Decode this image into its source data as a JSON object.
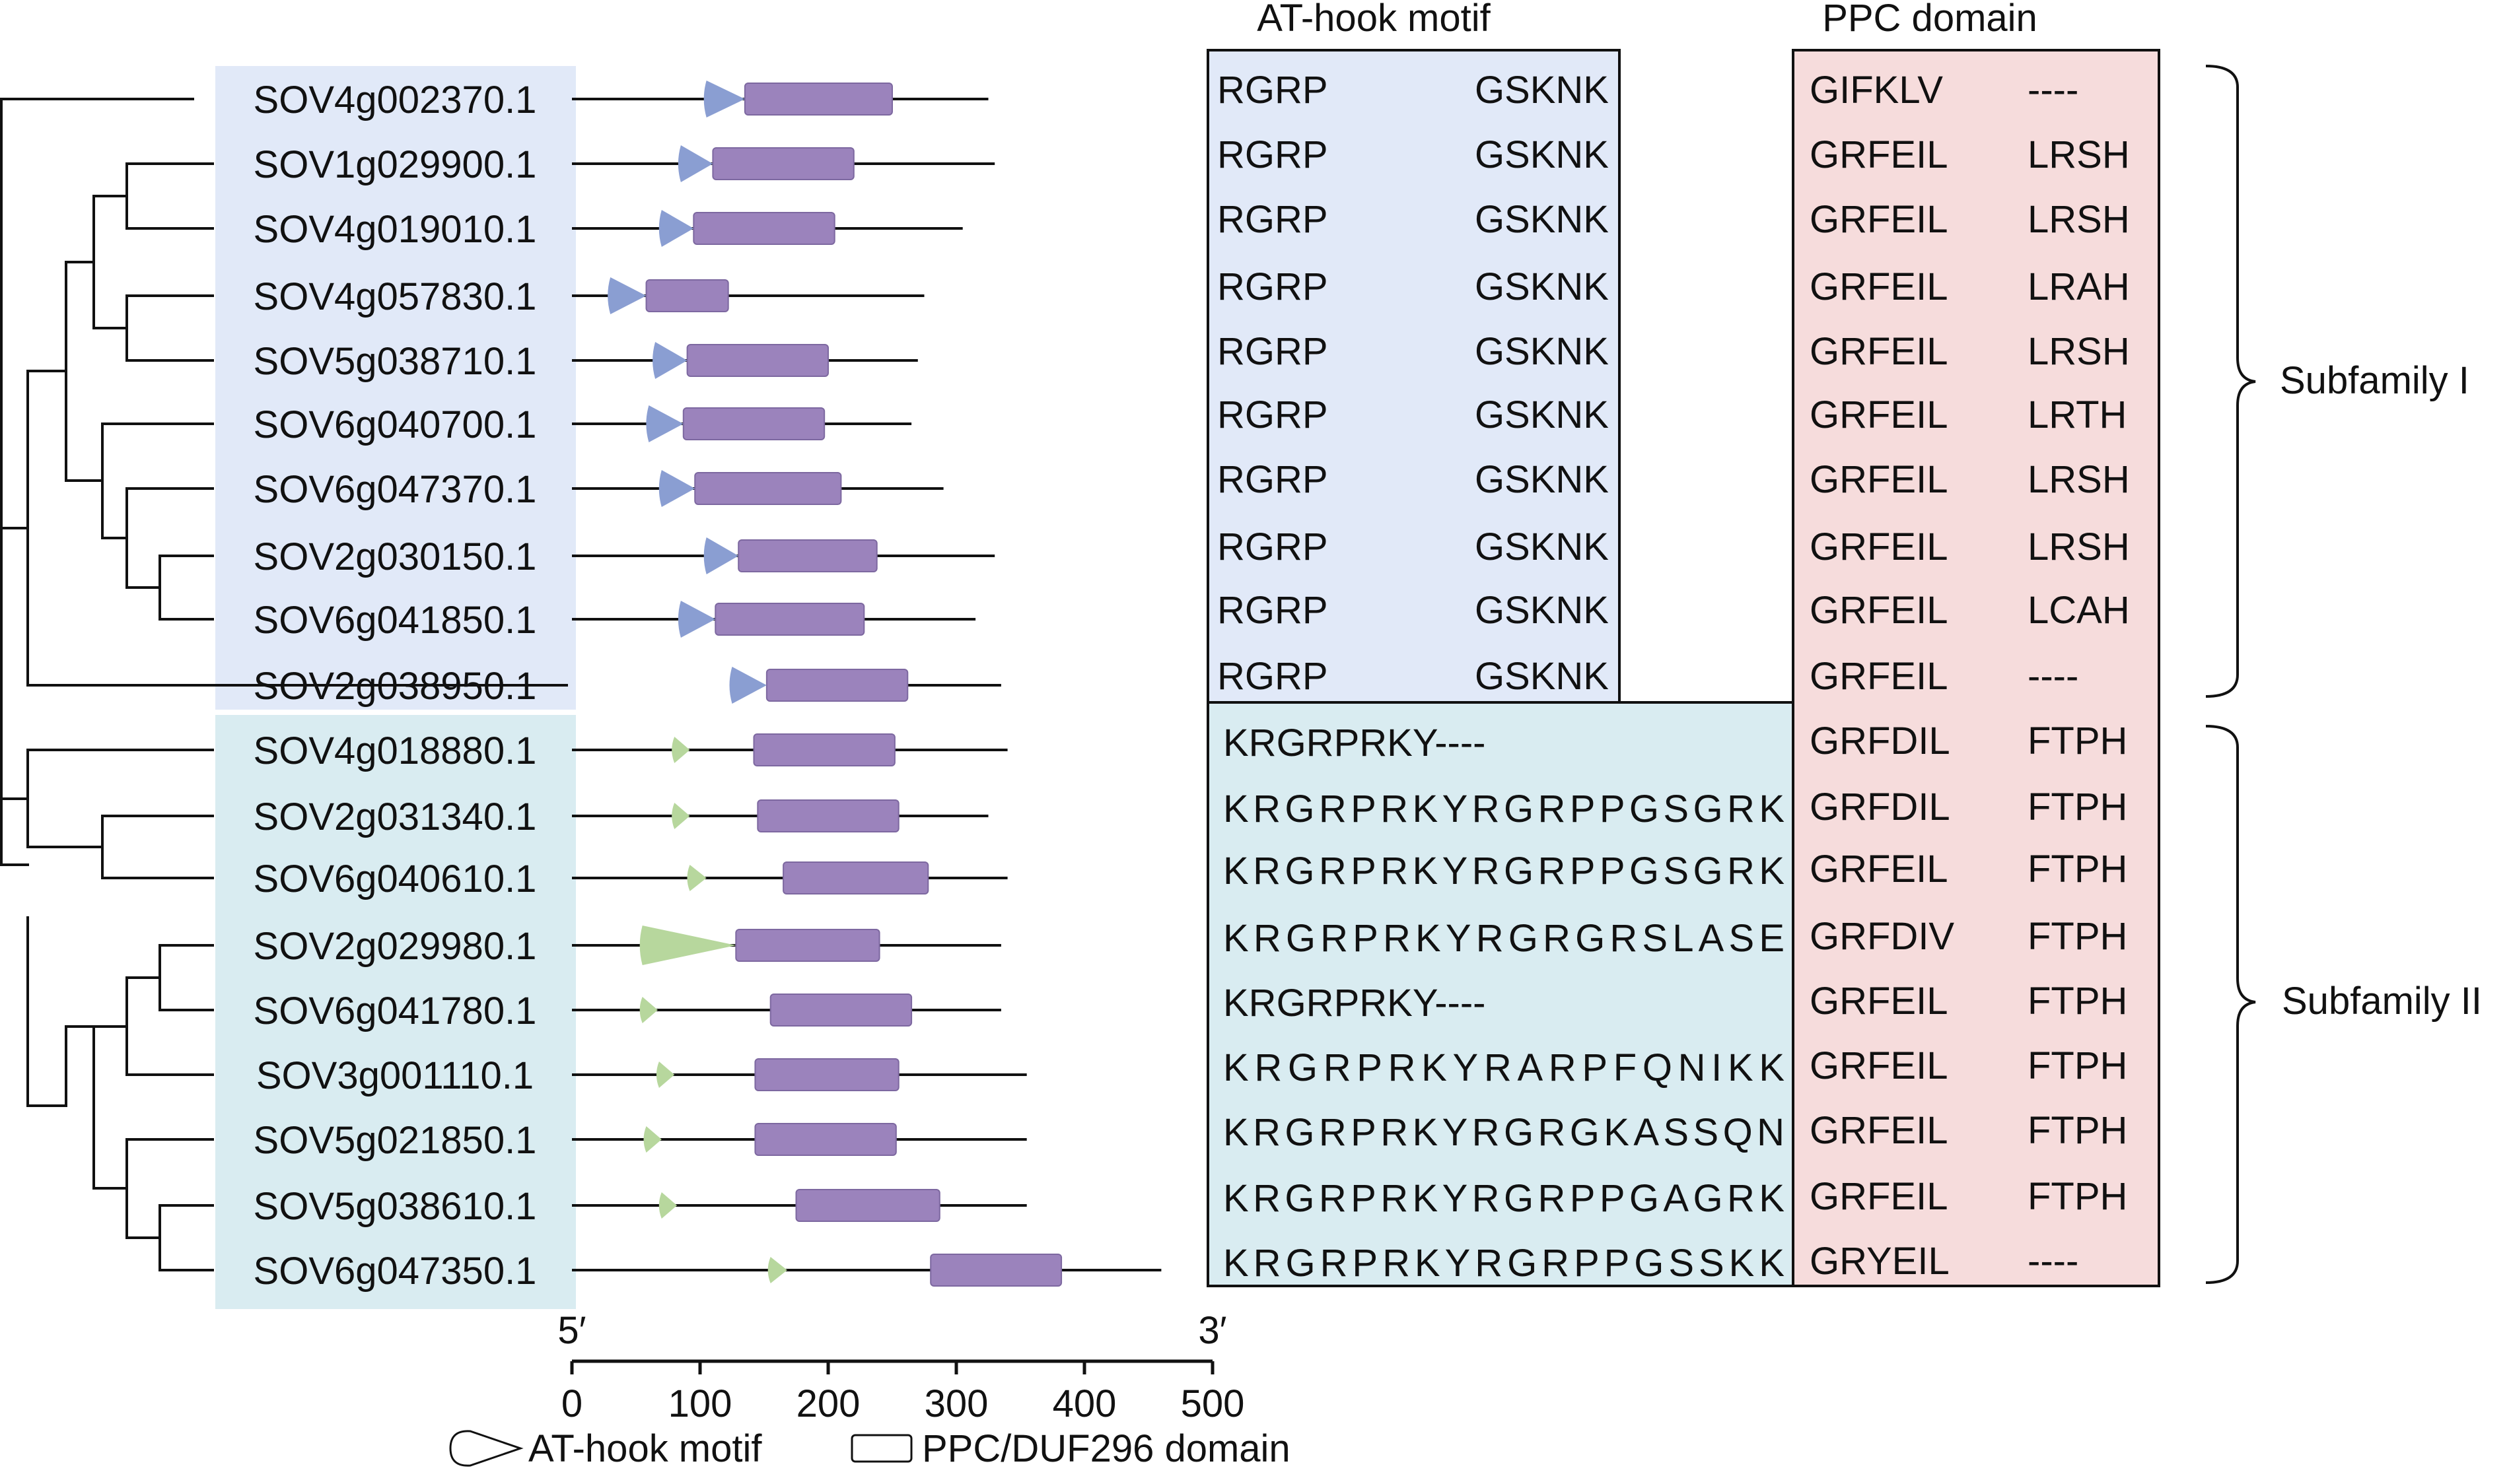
{
  "headers": {
    "at_hook": "AT-hook motif",
    "ppc": "PPC domain"
  },
  "colors": {
    "subfamily1_bg": "#e1e9f8",
    "subfamily2_bg": "#d9ecf1",
    "ppc_bg": "#f6dcdc",
    "at_hook_sub1": "#8a9ed2",
    "at_hook_sub2": "#b7d79d",
    "ppc_bar": "#9b83bc",
    "line": "#111111"
  },
  "subfamilies": [
    {
      "label": "Subfamily I"
    },
    {
      "label": "Subfamily II"
    }
  ],
  "axis": {
    "start_label": "5′",
    "end_label": "3′",
    "min": 0,
    "max": 500,
    "ticks": [
      "0",
      "100",
      "200",
      "300",
      "400",
      "500"
    ]
  },
  "legend": {
    "at_hook": "AT-hook motif",
    "ppc": "PPC/DUF296 domain"
  },
  "genes": [
    {
      "id": "SOV4g002370.1",
      "subfamily": 1,
      "length": 325,
      "at_hook": [
        105,
        135
      ],
      "ppc": [
        135,
        250
      ],
      "at_left": "RGRP",
      "at_right": "GSKNK",
      "ppc_left": "GIFKLV",
      "ppc_right": "----"
    },
    {
      "id": "SOV1g029900.1",
      "subfamily": 1,
      "length": 330,
      "at_hook": [
        85,
        110
      ],
      "ppc": [
        110,
        220
      ],
      "at_left": "RGRP",
      "at_right": "GSKNK",
      "ppc_left": "GRFEIL",
      "ppc_right": "LRSH"
    },
    {
      "id": "SOV4g019010.1",
      "subfamily": 1,
      "length": 305,
      "at_hook": [
        70,
        95
      ],
      "ppc": [
        95,
        205
      ],
      "at_left": "RGRP",
      "at_right": "GSKNK",
      "ppc_left": "GRFEIL",
      "ppc_right": "LRSH"
    },
    {
      "id": "SOV4g057830.1",
      "subfamily": 1,
      "length": 275,
      "at_hook": [
        30,
        58
      ],
      "ppc": [
        58,
        122
      ],
      "at_left": "RGRP",
      "at_right": "GSKNK",
      "ppc_left": "GRFEIL",
      "ppc_right": "LRAH"
    },
    {
      "id": "SOV5g038710.1",
      "subfamily": 1,
      "length": 270,
      "at_hook": [
        65,
        90
      ],
      "ppc": [
        90,
        200
      ],
      "at_left": "RGRP",
      "at_right": "GSKNK",
      "ppc_left": "GRFEIL",
      "ppc_right": "LRSH"
    },
    {
      "id": "SOV6g040700.1",
      "subfamily": 1,
      "length": 265,
      "at_hook": [
        60,
        87
      ],
      "ppc": [
        87,
        197
      ],
      "at_left": "RGRP",
      "at_right": "GSKNK",
      "ppc_left": "GRFEIL",
      "ppc_right": "LRTH"
    },
    {
      "id": "SOV6g047370.1",
      "subfamily": 1,
      "length": 290,
      "at_hook": [
        70,
        96
      ],
      "ppc": [
        96,
        210
      ],
      "at_left": "RGRP",
      "at_right": "GSKNK",
      "ppc_left": "GRFEIL",
      "ppc_right": "LRSH"
    },
    {
      "id": "SOV2g030150.1",
      "subfamily": 1,
      "length": 330,
      "at_hook": [
        105,
        130
      ],
      "ppc": [
        130,
        238
      ],
      "at_left": "RGRP",
      "at_right": "GSKNK",
      "ppc_left": "GRFEIL",
      "ppc_right": "LRSH"
    },
    {
      "id": "SOV6g041850.1",
      "subfamily": 1,
      "length": 315,
      "at_hook": [
        85,
        112
      ],
      "ppc": [
        112,
        228
      ],
      "at_left": "RGRP",
      "at_right": "GSKNK",
      "ppc_left": "GRFEIL",
      "ppc_right": "LCAH"
    },
    {
      "id": "SOV2g038950.1",
      "subfamily": 1,
      "length": 335,
      "at_hook": [
        125,
        152
      ],
      "ppc": [
        152,
        262
      ],
      "at_left": "RGRP",
      "at_right": "GSKNK",
      "ppc_left": "GRFEIL",
      "ppc_right": "----"
    },
    {
      "id": "SOV4g018880.1",
      "subfamily": 2,
      "length": 340,
      "at_hook": [
        80,
        92
      ],
      "ppc": [
        142,
        252
      ],
      "at_motif": "KRGRPRKY----",
      "ppc_left": "GRFDIL",
      "ppc_right": "FTPH"
    },
    {
      "id": "SOV2g031340.1",
      "subfamily": 2,
      "length": 325,
      "at_hook": [
        80,
        92
      ],
      "ppc": [
        145,
        255
      ],
      "at_motif": "KRGRPRKYRGRPPGSGRK",
      "ppc_left": "GRFDIL",
      "ppc_right": "FTPH"
    },
    {
      "id": "SOV6g040610.1",
      "subfamily": 2,
      "length": 340,
      "at_hook": [
        92,
        105
      ],
      "ppc": [
        165,
        278
      ],
      "at_motif": "KRGRPRKYRGRPPGSGRK",
      "ppc_left": "GRFEIL",
      "ppc_right": "FTPH"
    },
    {
      "id": "SOV2g029980.1",
      "subfamily": 2,
      "length": 335,
      "at_hook": [
        55,
        128
      ],
      "ppc": [
        128,
        240
      ],
      "at_motif": "KRGRPRKYRGRGRSLASE",
      "ppc_left": "GRFDIV",
      "ppc_right": "FTPH"
    },
    {
      "id": "SOV6g041780.1",
      "subfamily": 2,
      "length": 335,
      "at_hook": [
        55,
        67
      ],
      "ppc": [
        155,
        265
      ],
      "at_motif": "KRGRPRKY----",
      "ppc_left": "GRFEIL",
      "ppc_right": "FTPH"
    },
    {
      "id": "SOV3g001110.1",
      "subfamily": 2,
      "length": 355,
      "at_hook": [
        68,
        80
      ],
      "ppc": [
        143,
        255
      ],
      "at_motif": "KRGRPRKYRARPFQNIKK",
      "ppc_left": "GRFEIL",
      "ppc_right": "FTPH"
    },
    {
      "id": "SOV5g021850.1",
      "subfamily": 2,
      "length": 355,
      "at_hook": [
        58,
        70
      ],
      "ppc": [
        143,
        253
      ],
      "at_motif": "KRGRPRKYRGRGKASSQN",
      "ppc_left": "GRFEIL",
      "ppc_right": "FTPH"
    },
    {
      "id": "SOV5g038610.1",
      "subfamily": 2,
      "length": 355,
      "at_hook": [
        70,
        82
      ],
      "ppc": [
        175,
        287
      ],
      "at_motif": "KRGRPRKYRGRPPGAGRK",
      "ppc_left": "GRFEIL",
      "ppc_right": "FTPH"
    },
    {
      "id": "SOV6g047350.1",
      "subfamily": 2,
      "length": 460,
      "at_hook": [
        155,
        168
      ],
      "ppc": [
        280,
        382
      ],
      "at_motif": "KRGRPRKYRGRPPGSSKK",
      "ppc_left": "GRYEIL",
      "ppc_right": "----"
    }
  ]
}
